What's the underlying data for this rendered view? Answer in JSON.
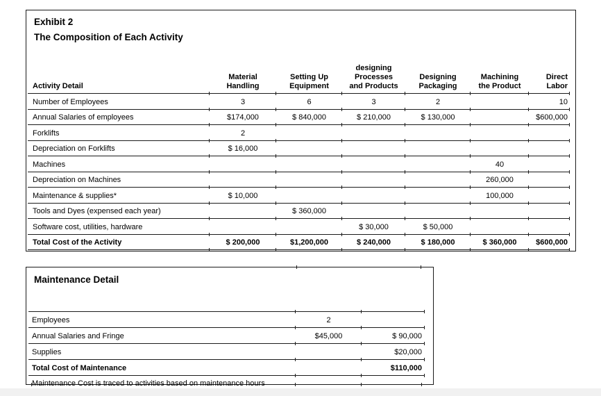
{
  "exhibit2": {
    "title_line1": "Exhibit 2",
    "title_line2": "The Composition of Each Activity",
    "columns": [
      {
        "lines": [
          "Activity Detail"
        ]
      },
      {
        "lines": [
          "Material",
          "Handling"
        ]
      },
      {
        "lines": [
          "Setting Up",
          "Equipment"
        ]
      },
      {
        "lines": [
          "designing",
          "Processes",
          "and Products"
        ]
      },
      {
        "lines": [
          "Designing",
          "Packaging"
        ]
      },
      {
        "lines": [
          "Machining",
          "the Product"
        ]
      },
      {
        "lines": [
          "Direct",
          "Labor"
        ]
      }
    ],
    "rows": [
      {
        "label": "Number of Employees",
        "cells": [
          "3",
          "6",
          "3",
          "2",
          "",
          "10"
        ],
        "bold": false
      },
      {
        "label": "Annual Salaries of employees",
        "cells": [
          "$174,000",
          "$ 840,000",
          "$ 210,000",
          "$ 130,000",
          "",
          "$600,000"
        ],
        "bold": false
      },
      {
        "label": "Forklifts",
        "cells": [
          "2",
          "",
          "",
          "",
          "",
          ""
        ],
        "bold": false
      },
      {
        "label": "Depreciation on Forklifts",
        "cells": [
          "$ 16,000",
          "",
          "",
          "",
          "",
          ""
        ],
        "bold": false
      },
      {
        "label": "Machines",
        "cells": [
          "",
          "",
          "",
          "",
          "40",
          ""
        ],
        "bold": false
      },
      {
        "label": "Depreciation on Machines",
        "cells": [
          "",
          "",
          "",
          "",
          "260,000",
          ""
        ],
        "bold": false
      },
      {
        "label": "Maintenance & supplies*",
        "cells": [
          "$ 10,000",
          "",
          "",
          "",
          "100,000",
          ""
        ],
        "bold": false
      },
      {
        "label": "Tools and Dyes (expensed each year)",
        "cells": [
          "",
          "$ 360,000",
          "",
          "",
          "",
          ""
        ],
        "bold": false
      },
      {
        "label": "Software cost, utilities, hardware",
        "cells": [
          "",
          "",
          "$ 30,000",
          "$ 50,000",
          "",
          ""
        ],
        "bold": false
      },
      {
        "label": "Total Cost of the Activity",
        "cells": [
          "$ 200,000",
          "$1,200,000",
          "$ 240,000",
          "$ 180,000",
          "$ 360,000",
          "$600,000"
        ],
        "bold": true
      }
    ]
  },
  "maintenance": {
    "title": "Maintenance Detail",
    "rows": [
      {
        "label": "",
        "cells": [
          "",
          ""
        ],
        "bold": false,
        "spacer": true
      },
      {
        "label": "Employees",
        "cells": [
          "2",
          ""
        ],
        "bold": false
      },
      {
        "label": "Annual Salaries and Fringe",
        "cells": [
          "$45,000",
          "$ 90,000"
        ],
        "bold": false
      },
      {
        "label": "Supplies",
        "cells": [
          "",
          "$20,000"
        ],
        "bold": false
      },
      {
        "label": "Total Cost of Maintenance",
        "cells": [
          "",
          "$110,000"
        ],
        "bold": true
      }
    ],
    "footnote": "Maintenance Cost is traced to activities based on maintenance hours"
  }
}
